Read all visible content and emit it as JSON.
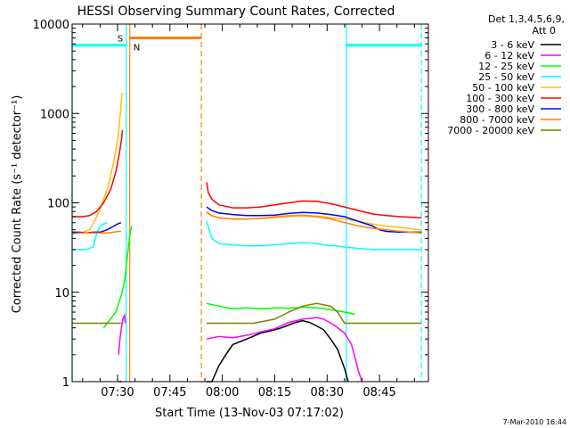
{
  "chart_data": {
    "type": "line",
    "title": "HESSI Observing Summary Count Rates, Corrected",
    "xlabel": "Start Time (13-Nov-03 07:17:02)",
    "ylabel": "Corrected Count Rate (s⁻¹ detector⁻¹)",
    "yscale": "log",
    "ylim": [
      1,
      10000
    ],
    "xlim_minutes": [
      0,
      102
    ],
    "x_unit": "minutes after 07:17:02",
    "x_ticks": [
      {
        "label": "07:30",
        "t": 13
      },
      {
        "label": "07:45",
        "t": 28
      },
      {
        "label": "08:00",
        "t": 43
      },
      {
        "label": "08:15",
        "t": 58
      },
      {
        "label": "08:30",
        "t": 73
      },
      {
        "label": "08:45",
        "t": 88
      }
    ],
    "y_ticks": [
      {
        "label": "1",
        "value": 1
      },
      {
        "label": "10",
        "value": 10
      },
      {
        "label": "100",
        "value": 100
      },
      {
        "label": "1000",
        "value": 1000
      },
      {
        "label": "10000",
        "value": 10000
      }
    ],
    "legend": {
      "header1": "Det 1,3,4,5,6,9,",
      "header2": "Att 0",
      "placement": "right"
    },
    "timestamp": "7-Mar-2010 16:44",
    "annotations": {
      "saa_label": "S",
      "night_label": "N",
      "saa_span": [
        16.5,
        37
      ],
      "night_spans": [
        [
          0,
          15.5
        ],
        [
          78.5,
          100
        ]
      ],
      "night_level": 5800,
      "saa_level": 7000,
      "lines": [
        {
          "t": 0,
          "color": "#00ffff",
          "style": "solid"
        },
        {
          "t": 15.5,
          "color": "#00ffff",
          "style": "solid"
        },
        {
          "t": 16.5,
          "color": "#ff8000",
          "style": "solid"
        },
        {
          "t": 37,
          "color": "#ff8000",
          "style": "dashed"
        },
        {
          "t": 78.5,
          "color": "#00ffff",
          "style": "solid"
        },
        {
          "t": 100,
          "color": "#00ffff",
          "style": "dashed"
        }
      ]
    },
    "series": [
      {
        "name": "3 - 6 keV",
        "color": "#000000",
        "segments": [
          [
            [
              13.5,
              1
            ],
            [
              13.9,
              1
            ],
            [
              14.1,
              1
            ]
          ],
          [
            [
              38.5,
              1
            ],
            [
              40,
              1
            ],
            [
              42,
              1.5
            ],
            [
              44,
              2
            ],
            [
              46,
              2.6
            ],
            [
              50,
              3
            ],
            [
              54,
              3.5
            ],
            [
              58,
              3.8
            ],
            [
              60,
              4
            ],
            [
              62,
              4.3
            ],
            [
              64,
              4.6
            ],
            [
              66,
              4.8
            ],
            [
              68,
              4.6
            ],
            [
              70,
              4.2
            ],
            [
              72,
              3.8
            ],
            [
              74,
              3
            ],
            [
              76,
              2.3
            ],
            [
              78,
              1.4
            ],
            [
              79,
              1
            ]
          ]
        ]
      },
      {
        "name": "6 - 12 keV",
        "color": "#ff00ff",
        "segments": [
          [
            [
              13.3,
              2
            ],
            [
              13.7,
              3
            ],
            [
              14.1,
              4
            ],
            [
              14.5,
              5
            ],
            [
              15,
              5.5
            ],
            [
              15.2,
              4.5
            ]
          ],
          [
            [
              38.5,
              3
            ],
            [
              42,
              3.2
            ],
            [
              46,
              3.1
            ],
            [
              50,
              3.3
            ],
            [
              54,
              3.6
            ],
            [
              58,
              3.9
            ],
            [
              62,
              4.6
            ],
            [
              66,
              5
            ],
            [
              70,
              5.2
            ],
            [
              72,
              5
            ],
            [
              75,
              4.3
            ],
            [
              78,
              3.5
            ],
            [
              80,
              2.6
            ],
            [
              82,
              1.3
            ],
            [
              83,
              1
            ]
          ]
        ]
      },
      {
        "name": "12 - 25 keV",
        "color": "#00ff00",
        "segments": [
          [
            [
              9,
              4
            ],
            [
              11,
              5
            ],
            [
              12.5,
              6
            ],
            [
              14,
              9
            ],
            [
              15,
              13
            ],
            [
              15.8,
              25
            ],
            [
              16.4,
              40
            ],
            [
              17,
              55
            ]
          ],
          [
            [
              38.5,
              7.5
            ],
            [
              42,
              7
            ],
            [
              46,
              6.5
            ],
            [
              50,
              6.7
            ],
            [
              54,
              6.5
            ],
            [
              58,
              6.7
            ],
            [
              62,
              6.6
            ],
            [
              66,
              6.8
            ],
            [
              70,
              6.7
            ],
            [
              74,
              6.4
            ],
            [
              78,
              6
            ],
            [
              80,
              5.8
            ],
            [
              81,
              5.6
            ]
          ]
        ]
      },
      {
        "name": "25 - 50 keV",
        "color": "#00ffff",
        "segments": [
          [
            [
              0,
              30
            ],
            [
              4,
              30
            ],
            [
              6,
              32
            ],
            [
              7,
              45
            ],
            [
              8,
              55
            ],
            [
              9,
              58
            ],
            [
              10,
              60
            ]
          ],
          [
            [
              38.5,
              62
            ],
            [
              40,
              40
            ],
            [
              42,
              35
            ],
            [
              46,
              34
            ],
            [
              50,
              33
            ],
            [
              54,
              33
            ],
            [
              58,
              34
            ],
            [
              62,
              35
            ],
            [
              66,
              36
            ],
            [
              70,
              35
            ],
            [
              74,
              33
            ],
            [
              76,
              33
            ],
            [
              78,
              32
            ],
            [
              82,
              31
            ],
            [
              86,
              30
            ],
            [
              90,
              30
            ],
            [
              94,
              30
            ],
            [
              100,
              30
            ]
          ]
        ]
      },
      {
        "name": "50 - 100 keV",
        "color": "#ffc000",
        "segments": [
          [
            [
              0,
              45
            ],
            [
              3,
              47
            ],
            [
              5,
              50
            ],
            [
              6,
              58
            ],
            [
              7,
              70
            ],
            [
              8,
              85
            ],
            [
              9,
              110
            ],
            [
              10,
              140
            ],
            [
              11,
              200
            ],
            [
              12,
              300
            ],
            [
              13,
              500
            ],
            [
              13.8,
              1000
            ],
            [
              14.3,
              1700
            ]
          ],
          [
            [
              38.5,
              80
            ],
            [
              40,
              72
            ],
            [
              42,
              68
            ],
            [
              46,
              66
            ],
            [
              50,
              66
            ],
            [
              54,
              67
            ],
            [
              58,
              70
            ],
            [
              62,
              72
            ],
            [
              66,
              73
            ],
            [
              70,
              71
            ],
            [
              74,
              68
            ],
            [
              78,
              66
            ],
            [
              82,
              62
            ],
            [
              86,
              58
            ],
            [
              90,
              55
            ],
            [
              94,
              53
            ],
            [
              100,
              50
            ]
          ]
        ]
      },
      {
        "name": "100 - 300 keV",
        "color": "#ff0000",
        "segments": [
          [
            [
              0,
              70
            ],
            [
              3,
              70
            ],
            [
              5,
              72
            ],
            [
              7,
              80
            ],
            [
              9,
              100
            ],
            [
              11,
              140
            ],
            [
              12.5,
              220
            ],
            [
              13.5,
              350
            ],
            [
              14.1,
              500
            ],
            [
              14.4,
              650
            ]
          ],
          [
            [
              38.5,
              170
            ],
            [
              39,
              130
            ],
            [
              40,
              110
            ],
            [
              42,
              95
            ],
            [
              46,
              88
            ],
            [
              50,
              88
            ],
            [
              54,
              90
            ],
            [
              58,
              95
            ],
            [
              62,
              100
            ],
            [
              66,
              105
            ],
            [
              70,
              104
            ],
            [
              74,
              98
            ],
            [
              78,
              90
            ],
            [
              82,
              82
            ],
            [
              86,
              75
            ],
            [
              90,
              72
            ],
            [
              94,
              70
            ],
            [
              100,
              68
            ]
          ]
        ]
      },
      {
        "name": "300 - 800 keV",
        "color": "#0000ff",
        "segments": [
          [
            [
              0,
              47
            ],
            [
              2,
              47
            ],
            [
              4,
              46
            ],
            [
              6,
              47
            ],
            [
              8,
              47
            ],
            [
              10,
              50
            ],
            [
              12,
              55
            ],
            [
              13,
              58
            ],
            [
              14,
              60
            ]
          ],
          [
            [
              38.5,
              90
            ],
            [
              40,
              82
            ],
            [
              42,
              77
            ],
            [
              46,
              74
            ],
            [
              50,
              72
            ],
            [
              54,
              72
            ],
            [
              58,
              73
            ],
            [
              62,
              76
            ],
            [
              66,
              78
            ],
            [
              70,
              77
            ],
            [
              74,
              74
            ],
            [
              78,
              70
            ],
            [
              82,
              62
            ],
            [
              86,
              55
            ],
            [
              88,
              50
            ],
            [
              90,
              48
            ],
            [
              94,
              47
            ],
            [
              100,
              47
            ]
          ]
        ]
      },
      {
        "name": "800 - 7000 keV",
        "color": "#ff8000",
        "segments": [
          [
            [
              0,
              45
            ],
            [
              2,
              46
            ],
            [
              4,
              46
            ],
            [
              6,
              46
            ],
            [
              8,
              46
            ],
            [
              10,
              46
            ],
            [
              12,
              47
            ],
            [
              13,
              48
            ],
            [
              14,
              48
            ]
          ],
          [
            [
              38.5,
              78
            ],
            [
              40,
              72
            ],
            [
              42,
              68
            ],
            [
              46,
              66
            ],
            [
              50,
              66
            ],
            [
              54,
              67
            ],
            [
              58,
              69
            ],
            [
              62,
              71
            ],
            [
              66,
              72
            ],
            [
              70,
              70
            ],
            [
              74,
              66
            ],
            [
              78,
              60
            ],
            [
              82,
              55
            ],
            [
              86,
              52
            ],
            [
              90,
              50
            ],
            [
              94,
              48
            ],
            [
              100,
              46
            ]
          ]
        ]
      },
      {
        "name": "7000 - 20000 keV",
        "color": "#808000",
        "segments": [
          [
            [
              0,
              4.5
            ],
            [
              14,
              4.5
            ]
          ],
          [
            [
              38.5,
              4.5
            ],
            [
              44,
              4.5
            ],
            [
              52,
              4.5
            ],
            [
              58,
              5
            ],
            [
              62,
              6
            ],
            [
              66,
              7
            ],
            [
              70,
              7.5
            ],
            [
              74,
              7
            ],
            [
              76,
              6
            ],
            [
              78,
              4.5
            ],
            [
              100,
              4.5
            ]
          ]
        ]
      }
    ]
  }
}
